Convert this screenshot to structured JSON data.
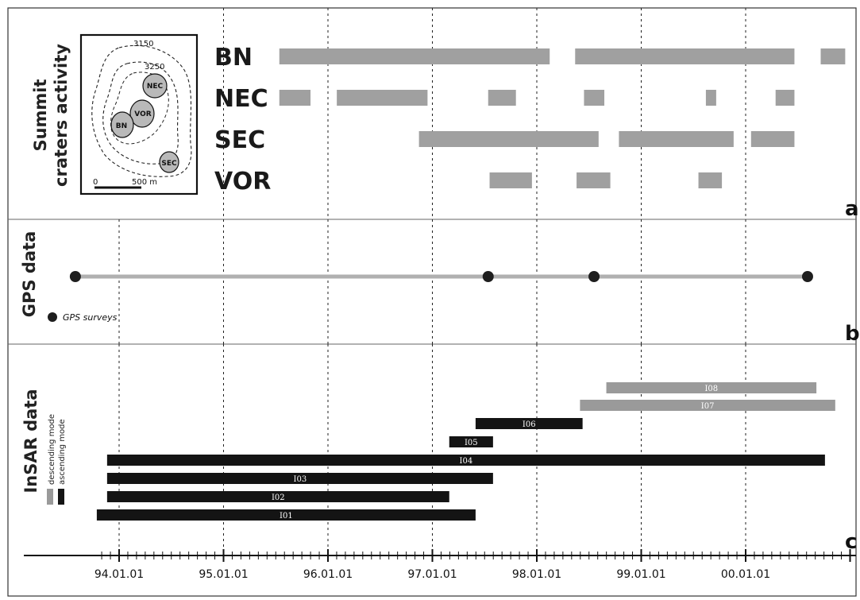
{
  "panels": {
    "a": {
      "title_line1": "Summit",
      "title_line2": "craters activity",
      "letter": "a"
    },
    "b": {
      "title": "GPS data",
      "letter": "b"
    },
    "c": {
      "title": "InSAR data",
      "letter": "c"
    }
  },
  "inset": {
    "contour_labels": [
      "3150",
      "3250"
    ],
    "craters": [
      "NEC",
      "VOR",
      "BN",
      "SEC"
    ],
    "scale": {
      "start": "0",
      "end": "500 m"
    }
  },
  "chart_data": {
    "type": "timeline",
    "x_axis": {
      "tick_labels": [
        "94.01.01",
        "95.01.01",
        "96.01.01",
        "97.01.01",
        "98.01.01",
        "99.01.01",
        "00.01.01"
      ],
      "range": [
        "1993-03-01",
        "2000-12-15"
      ]
    },
    "colors": {
      "activity": "#a0a0a0",
      "gps_line": "#b0b0b0",
      "gps_point": "#1e1e1e",
      "descending": "#9a9a9a",
      "ascending": "#141414"
    },
    "crater_activity": [
      {
        "crater": "BN",
        "periods": [
          [
            "1995-07-15",
            "1998-02-15"
          ],
          [
            "1998-05-15",
            "2000-06-20"
          ],
          [
            "2000-09-20",
            "2000-12-15"
          ]
        ]
      },
      {
        "crater": "NEC",
        "periods": [
          [
            "1995-07-15",
            "1995-11-01"
          ],
          [
            "1996-02-01",
            "1996-12-15"
          ],
          [
            "1997-07-15",
            "1997-10-20"
          ],
          [
            "1998-06-15",
            "1998-08-25"
          ],
          [
            "1999-08-15",
            "1999-09-20"
          ],
          [
            "2000-04-15",
            "2000-06-20"
          ]
        ]
      },
      {
        "crater": "SEC",
        "periods": [
          [
            "1996-11-15",
            "1998-08-05"
          ],
          [
            "1998-10-15",
            "1999-11-20"
          ],
          [
            "2000-01-20",
            "2000-06-20"
          ]
        ]
      },
      {
        "crater": "VOR",
        "periods": [
          [
            "1997-07-20",
            "1997-12-15"
          ],
          [
            "1998-05-20",
            "1998-09-15"
          ],
          [
            "1999-07-20",
            "1999-10-10"
          ]
        ]
      }
    ],
    "gps": {
      "legend": "GPS surveys",
      "surveys": [
        "1993-08-01",
        "1997-07-15",
        "1998-07-20",
        "2000-08-05"
      ]
    },
    "insar": {
      "legend": {
        "descending": "descending mode",
        "ascending": "ascending mode"
      },
      "pairs": [
        {
          "id": "I08",
          "mode": "descending",
          "start": "1998-09-01",
          "end": "2000-09-05"
        },
        {
          "id": "I07",
          "mode": "descending",
          "start": "1998-06-01",
          "end": "2000-11-10"
        },
        {
          "id": "I06",
          "mode": "ascending",
          "start": "1997-06-01",
          "end": "1998-06-10"
        },
        {
          "id": "I05",
          "mode": "ascending",
          "start": "1997-03-01",
          "end": "1997-08-01"
        },
        {
          "id": "I04",
          "mode": "ascending",
          "start": "1993-11-20",
          "end": "2000-10-05"
        },
        {
          "id": "I03",
          "mode": "ascending",
          "start": "1993-11-20",
          "end": "1997-08-01"
        },
        {
          "id": "I02",
          "mode": "ascending",
          "start": "1993-11-20",
          "end": "1997-03-01"
        },
        {
          "id": "I01",
          "mode": "ascending",
          "start": "1993-10-15",
          "end": "1997-06-01"
        }
      ]
    }
  }
}
